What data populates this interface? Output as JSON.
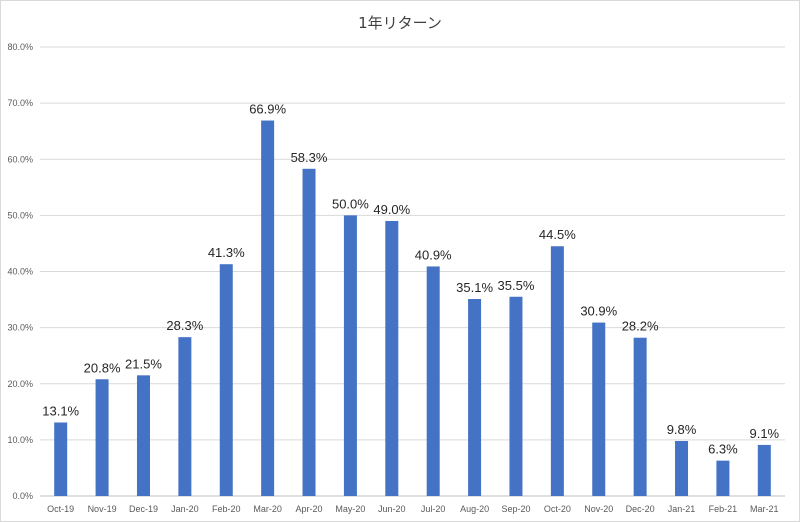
{
  "chart_data": {
    "type": "bar",
    "title": "1年リターン",
    "xlabel": "",
    "ylabel": "",
    "ylim": [
      0,
      80
    ],
    "y_ticks": [
      "0.0%",
      "10.0%",
      "20.0%",
      "30.0%",
      "40.0%",
      "50.0%",
      "60.0%",
      "70.0%",
      "80.0%"
    ],
    "grid": true,
    "legend": "none",
    "bar_color": "#4472C4",
    "categories": [
      "Oct-19",
      "Nov-19",
      "Dec-19",
      "Jan-20",
      "Feb-20",
      "Mar-20",
      "Apr-20",
      "May-20",
      "Jun-20",
      "Jul-20",
      "Aug-20",
      "Sep-20",
      "Oct-20",
      "Nov-20",
      "Dec-20",
      "Jan-21",
      "Feb-21",
      "Mar-21"
    ],
    "values": [
      13.1,
      20.8,
      21.5,
      28.3,
      41.3,
      66.9,
      58.3,
      50.0,
      49.0,
      40.9,
      35.1,
      35.5,
      44.5,
      30.9,
      28.2,
      9.8,
      6.3,
      9.1
    ],
    "data_labels": [
      "13.1%",
      "20.8%",
      "21.5%",
      "28.3%",
      "41.3%",
      "66.9%",
      "58.3%",
      "50.0%",
      "49.0%",
      "40.9%",
      "35.1%",
      "35.5%",
      "44.5%",
      "30.9%",
      "28.2%",
      "9.8%",
      "6.3%",
      "9.1%"
    ]
  }
}
